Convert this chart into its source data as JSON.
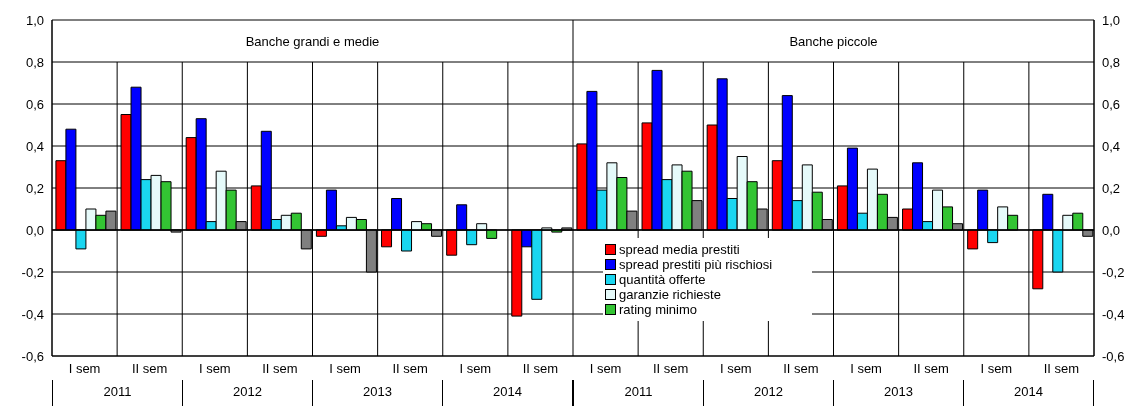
{
  "chart_data": [
    {
      "type": "bar",
      "title": "Banche grandi e medie",
      "categories": [
        "I sem",
        "II sem",
        "I sem",
        "II sem",
        "I sem",
        "II sem",
        "I sem",
        "II sem"
      ],
      "annotations": [
        "2011",
        "2012",
        "2013",
        "2014"
      ],
      "series": [
        {
          "color": "#ff0000",
          "values": [
            0.33,
            0.55,
            0.44,
            0.21,
            -0.03,
            -0.08,
            -0.12,
            -0.41
          ]
        },
        {
          "color": "#0000ff",
          "values": [
            0.48,
            0.68,
            0.53,
            0.47,
            0.19,
            0.15,
            0.12,
            -0.08
          ]
        },
        {
          "color": "#1ad6f0",
          "values": [
            -0.09,
            0.24,
            0.04,
            0.05,
            0.02,
            -0.1,
            -0.07,
            -0.33
          ]
        },
        {
          "color": "#e6fafa",
          "values": [
            0.1,
            0.26,
            0.28,
            0.07,
            0.06,
            0.04,
            0.03,
            0.01
          ]
        },
        {
          "color": "#33c433",
          "values": [
            0.07,
            0.23,
            0.19,
            0.08,
            0.05,
            0.03,
            -0.04,
            -0.01
          ]
        },
        {
          "color": "#808080",
          "values": [
            0.09,
            -0.01,
            0.04,
            -0.09,
            -0.2,
            -0.03,
            0.0,
            0.01
          ]
        }
      ],
      "ylim": [
        -0.6,
        1.0
      ],
      "yticks": [
        {
          "value": -0.6,
          "label": "-0,6"
        },
        {
          "value": -0.4,
          "label": "-0,4"
        },
        {
          "value": -0.2,
          "label": "-0,2"
        },
        {
          "value": 0,
          "label": "0,0"
        },
        {
          "value": 0.2,
          "label": "0,2"
        },
        {
          "value": 0.4,
          "label": "0,4"
        },
        {
          "value": 0.6,
          "label": "0,6"
        },
        {
          "value": 0.8,
          "label": "0,8"
        },
        {
          "value": 1.0,
          "label": "1,0"
        }
      ],
      "grid": true
    },
    {
      "type": "bar",
      "title": "Banche piccole",
      "categories": [
        "I sem",
        "II sem",
        "I sem",
        "II sem",
        "I sem",
        "II sem",
        "I sem",
        "II sem"
      ],
      "annotations": [
        "2011",
        "2012",
        "2013",
        "2014"
      ],
      "series": [
        {
          "name": "spread media prestiti",
          "color": "#ff0000",
          "values": [
            0.41,
            0.51,
            0.5,
            0.33,
            0.21,
            0.1,
            -0.09,
            -0.28
          ]
        },
        {
          "name": "spread prestiti più rischiosi",
          "color": "#0000ff",
          "values": [
            0.66,
            0.76,
            0.72,
            0.64,
            0.39,
            0.32,
            0.19,
            0.17
          ]
        },
        {
          "name": "quantità offerte",
          "color": "#1ad6f0",
          "values": [
            0.19,
            0.24,
            0.15,
            0.14,
            0.08,
            0.04,
            -0.06,
            -0.2
          ]
        },
        {
          "name": "garanzie richieste",
          "color": "#e6fafa",
          "values": [
            0.32,
            0.31,
            0.35,
            0.31,
            0.29,
            0.19,
            0.11,
            0.07
          ]
        },
        {
          "name": "rating minimo",
          "color": "#33c433",
          "values": [
            0.25,
            0.28,
            0.23,
            0.18,
            0.17,
            0.11,
            0.07,
            0.08
          ]
        },
        {
          "color": "#808080",
          "values": [
            0.09,
            0.14,
            0.1,
            0.05,
            0.06,
            0.03,
            0.0,
            -0.03
          ]
        }
      ],
      "ylim": [
        -0.6,
        1.0
      ],
      "yticks": [
        {
          "value": -0.6,
          "label": "-0,6"
        },
        {
          "value": -0.4,
          "label": "-0,4"
        },
        {
          "value": -0.2,
          "label": "-0,2"
        },
        {
          "value": 0,
          "label": "0,0"
        },
        {
          "value": 0.2,
          "label": "0,2"
        },
        {
          "value": 0.4,
          "label": "0,4"
        },
        {
          "value": 0.6,
          "label": "0,6"
        },
        {
          "value": 0.8,
          "label": "0,8"
        },
        {
          "value": 1.0,
          "label": "1,0"
        }
      ],
      "grid": true,
      "legend": "bottom left"
    }
  ]
}
